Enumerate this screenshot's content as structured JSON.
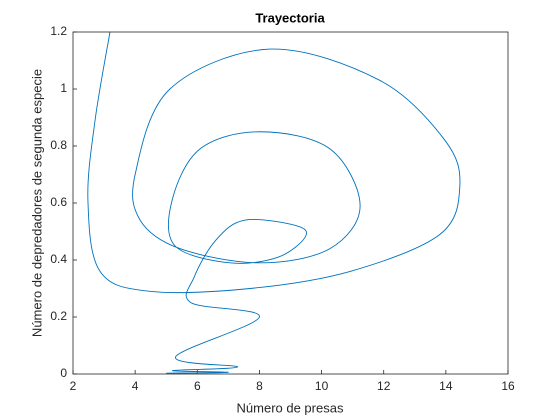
{
  "chart_data": {
    "type": "line",
    "title": "Trayectoria",
    "xlabel": "Número de presas",
    "ylabel": "Número de depredadores de segunda especie",
    "x": [
      5.0,
      7.0,
      5.2,
      7.3,
      5.3,
      8.0,
      5.8,
      5.9,
      6.6,
      7.54,
      9.2,
      9.47,
      8.6,
      7.05,
      5.28,
      5.19,
      6.09,
      8.02,
      10.27,
      11.24,
      10.27,
      8.02,
      5.44,
      4.16,
      4.0,
      5.12,
      8.34,
      11.88,
      13.97,
      14.45,
      13.81,
      10.92,
      7.7,
      4.48,
      2.87,
      2.48,
      2.71,
      3.19
    ],
    "series": [
      {
        "color": "#0072bd",
        "values": [
          0.003,
          0.006,
          0.012,
          0.025,
          0.06,
          0.2,
          0.25,
          0.34,
          0.47,
          0.54,
          0.52,
          0.48,
          0.41,
          0.39,
          0.45,
          0.61,
          0.79,
          0.85,
          0.79,
          0.59,
          0.44,
          0.39,
          0.44,
          0.54,
          0.7,
          1.0,
          1.14,
          1.03,
          0.82,
          0.66,
          0.49,
          0.36,
          0.3,
          0.29,
          0.36,
          0.61,
          0.89,
          1.2
        ]
      }
    ],
    "xlim": [
      2,
      16
    ],
    "xticks": [
      2,
      4,
      6,
      8,
      10,
      12,
      14,
      16
    ],
    "ylim": [
      0,
      1.2
    ],
    "yticks": [
      0,
      0.2,
      0.4,
      0.6,
      0.8,
      1,
      1.2
    ]
  }
}
